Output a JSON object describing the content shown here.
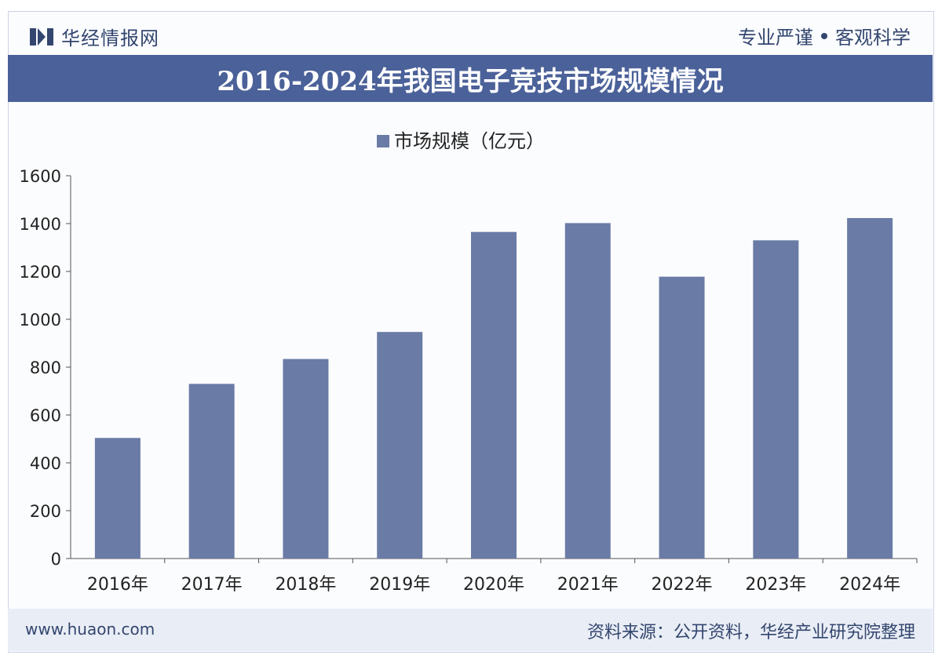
{
  "header": {
    "brand": "华经情报网",
    "slogan_left": "专业严谨",
    "slogan_right": "客观科学"
  },
  "title": "2016-2024年我国电子竞技市场规模情况",
  "chart_data": {
    "type": "bar",
    "categories": [
      "2016年",
      "2017年",
      "2018年",
      "2019年",
      "2020年",
      "2021年",
      "2022年",
      "2023年",
      "2024年"
    ],
    "series": [
      {
        "name": "市场规模（亿元）",
        "values": [
          504,
          730,
          834,
          947,
          1365,
          1402,
          1178,
          1330,
          1423
        ]
      }
    ],
    "ylim": [
      0,
      1600
    ],
    "yticks": [
      0,
      200,
      400,
      600,
      800,
      1000,
      1200,
      1400,
      1600
    ],
    "grid": false,
    "legend_position": "top-center",
    "bar_color": "#6a7ba6"
  },
  "footer": {
    "site": "www.huaon.com",
    "source": "资料来源：公开资料，华经产业研究院整理"
  },
  "colors": {
    "title_band": "#4b6199",
    "brand_text": "#33466f",
    "footer_bg": "#e9edf5"
  }
}
